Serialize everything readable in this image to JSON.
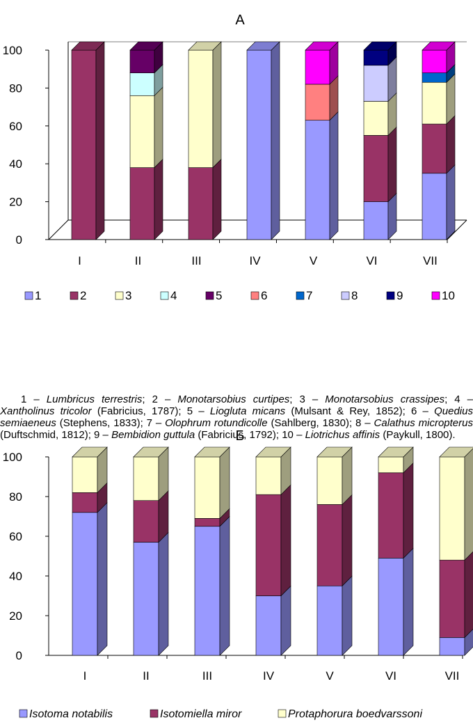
{
  "chart_data": [
    {
      "type": "stacked-bar-3d",
      "title": "А",
      "categories": [
        "I",
        "II",
        "III",
        "IV",
        "V",
        "VI",
        "VII"
      ],
      "y_ticks": [
        "0",
        "20",
        "40",
        "60",
        "80",
        "100"
      ],
      "ylim": [
        0,
        100
      ],
      "legend": [
        {
          "label": "1",
          "color": "#9999ff"
        },
        {
          "label": "2",
          "color": "#993366"
        },
        {
          "label": "3",
          "color": "#ffffcc"
        },
        {
          "label": "4",
          "color": "#ccffff"
        },
        {
          "label": "5",
          "color": "#660066"
        },
        {
          "label": "6",
          "color": "#ff8080"
        },
        {
          "label": "7",
          "color": "#0066cc"
        },
        {
          "label": "8",
          "color": "#ccccff"
        },
        {
          "label": "9",
          "color": "#000080"
        },
        {
          "label": "10",
          "color": "#ff00ff"
        }
      ],
      "series": [
        {
          "name": "1",
          "values": [
            0,
            0,
            0,
            100,
            63,
            20,
            35
          ]
        },
        {
          "name": "2",
          "values": [
            100,
            38,
            38,
            0,
            0,
            35,
            26
          ]
        },
        {
          "name": "3",
          "values": [
            0,
            38,
            62,
            0,
            0,
            18,
            22
          ]
        },
        {
          "name": "4",
          "values": [
            0,
            12,
            0,
            0,
            0,
            0,
            0
          ]
        },
        {
          "name": "5",
          "values": [
            0,
            12,
            0,
            0,
            0,
            0,
            0
          ]
        },
        {
          "name": "6",
          "values": [
            0,
            0,
            0,
            0,
            19,
            0,
            0
          ]
        },
        {
          "name": "7",
          "values": [
            0,
            0,
            0,
            0,
            0,
            0,
            5
          ]
        },
        {
          "name": "8",
          "values": [
            0,
            0,
            0,
            0,
            0,
            19,
            0
          ]
        },
        {
          "name": "9",
          "values": [
            0,
            0,
            0,
            0,
            0,
            8,
            0
          ]
        },
        {
          "name": "10",
          "values": [
            0,
            0,
            0,
            0,
            18,
            0,
            12
          ]
        }
      ]
    },
    {
      "type": "stacked-bar-3d",
      "title": "Б",
      "categories": [
        "I",
        "II",
        "III",
        "IV",
        "V",
        "VI",
        "VII"
      ],
      "y_ticks": [
        "0",
        "20",
        "40",
        "60",
        "80",
        "100"
      ],
      "ylim": [
        0,
        100
      ],
      "legend": [
        {
          "label": "Isotoma notabilis",
          "color": "#9999ff"
        },
        {
          "label": "Isotomiella miror",
          "color": "#993366"
        },
        {
          "label": "Protaphorura boedvarssoni",
          "color": "#ffffcc"
        }
      ],
      "series": [
        {
          "name": "Isotoma notabilis",
          "values": [
            72,
            57,
            65,
            30,
            35,
            49,
            9
          ]
        },
        {
          "name": "Isotomiella miror",
          "values": [
            10,
            21,
            4,
            51,
            41,
            43,
            39
          ]
        },
        {
          "name": "Protaphorura boedvarssoni",
          "values": [
            18,
            22,
            31,
            19,
            24,
            8,
            52
          ]
        }
      ]
    }
  ],
  "caption": [
    {
      "t": "1 – ",
      "i": false
    },
    {
      "t": "Lumbricus terrestris",
      "i": true
    },
    {
      "t": "; 2 – ",
      "i": false
    },
    {
      "t": "Monotarsobius curtipes",
      "i": true
    },
    {
      "t": "; 3 – ",
      "i": false
    },
    {
      "t": "Monotarsobius crassipes",
      "i": true
    },
    {
      "t": "; 4 – ",
      "i": false
    },
    {
      "t": "Xantholinus tricolor",
      "i": true
    },
    {
      "t": " (Fabricius, 1787); 5 – ",
      "i": false
    },
    {
      "t": "Liogluta micans",
      "i": true
    },
    {
      "t": " (Mulsant & Rey, 1852); 6 – ",
      "i": false
    },
    {
      "t": "Quedius semiaeneus",
      "i": true
    },
    {
      "t": " (Stephens, 1833); 7 – ",
      "i": false
    },
    {
      "t": "Olophrum rotundicolle",
      "i": true
    },
    {
      "t": " (Sahlberg, 1830); 8 – ",
      "i": false
    },
    {
      "t": "Calathus micropterus",
      "i": true
    },
    {
      "t": " (Duftschmid, 1812); 9 – ",
      "i": false
    },
    {
      "t": "Bembidion guttula",
      "i": true
    },
    {
      "t": " (Fabricius, 1792); 10 – ",
      "i": false
    },
    {
      "t": "Liotrichus affinis",
      "i": true
    },
    {
      "t": " (Paykull, 1800).",
      "i": false
    }
  ]
}
